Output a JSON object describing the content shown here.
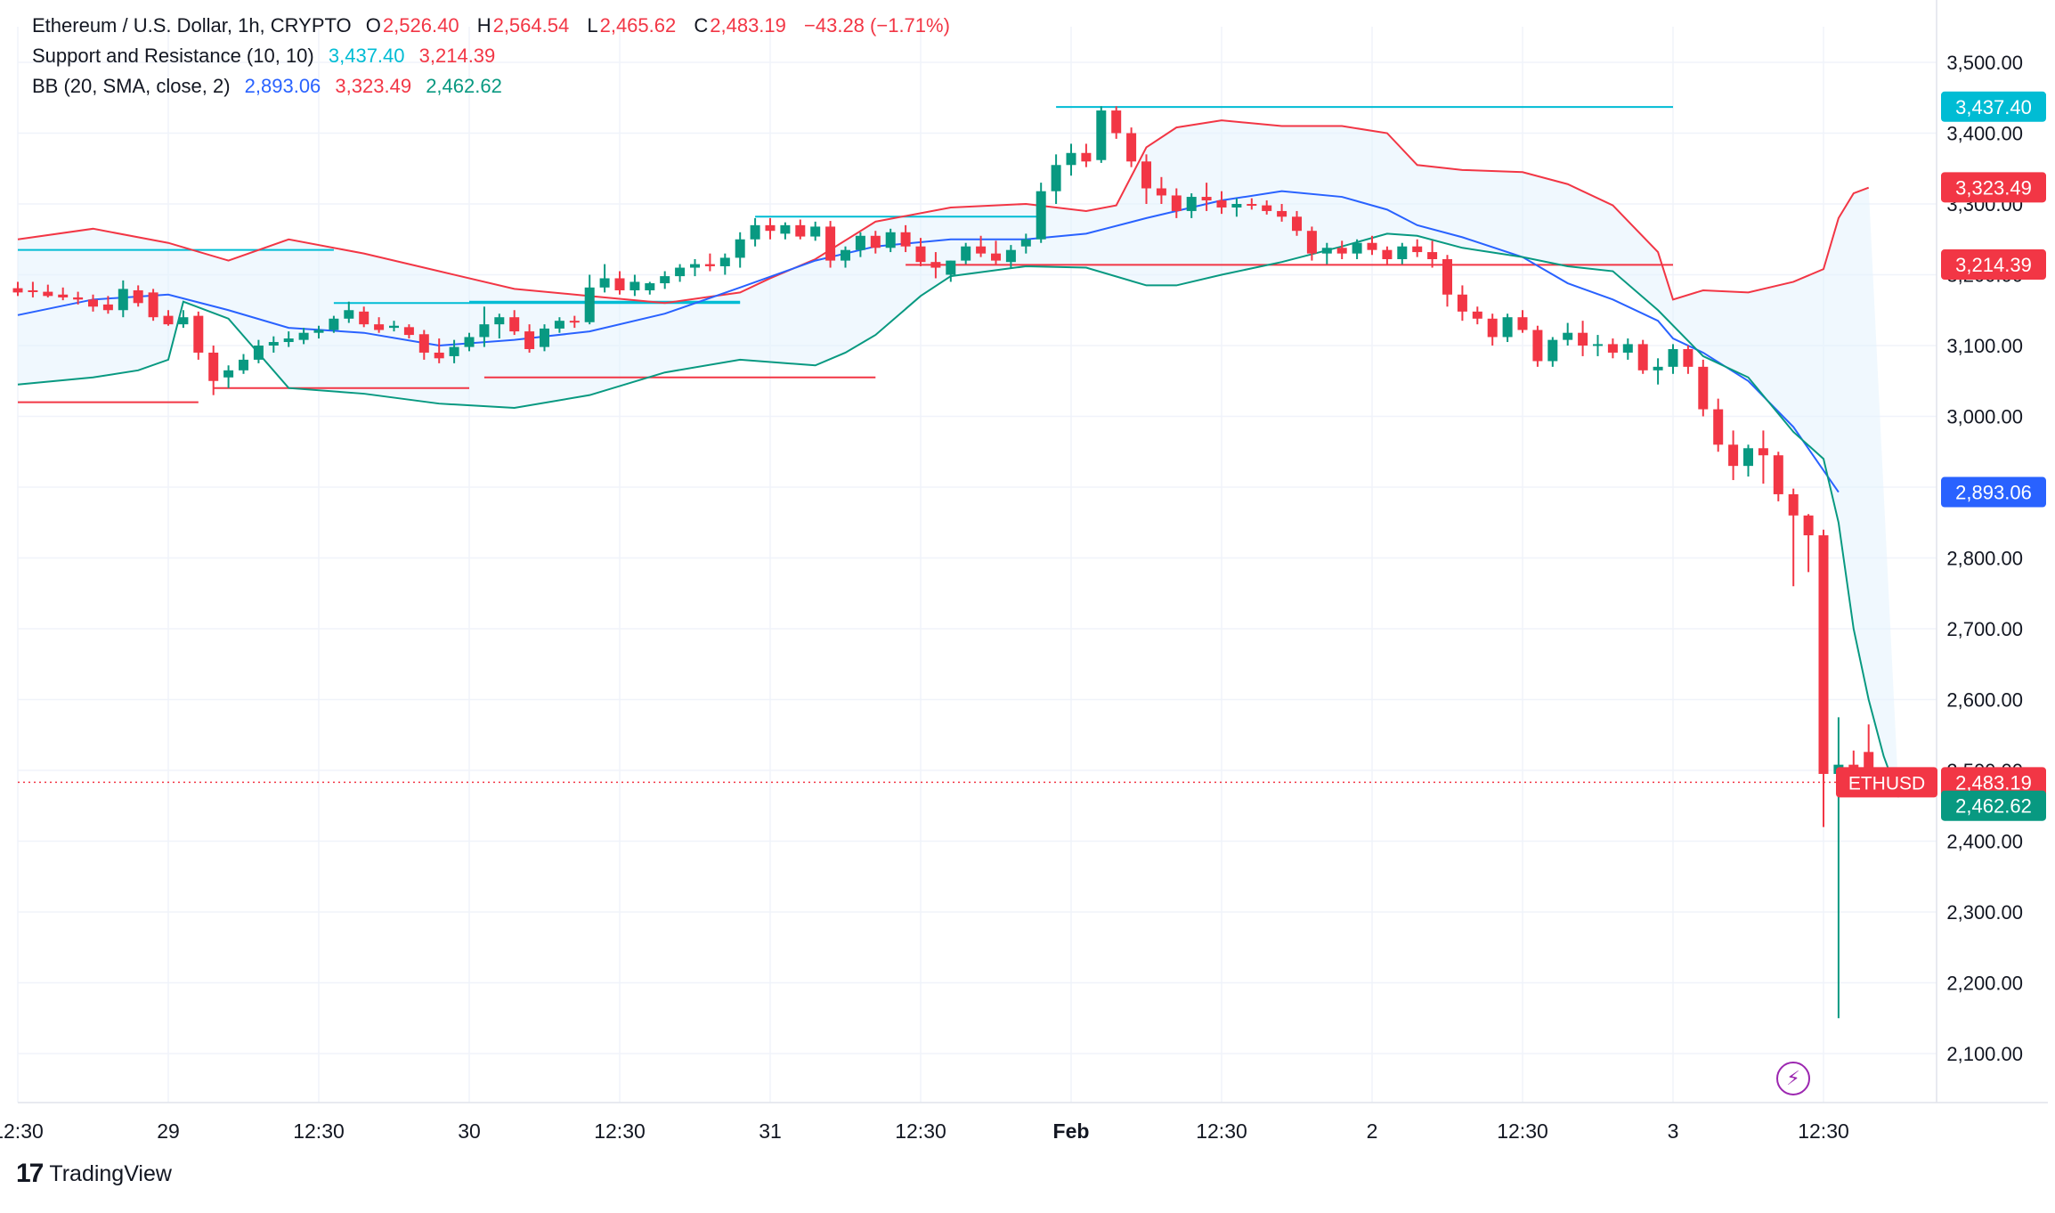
{
  "legend": {
    "symbol": "Ethereum / U.S. Dollar, 1h, CRYPTO",
    "o_label": "O",
    "o": "2,526.40",
    "h_label": "H",
    "h": "2,564.54",
    "l_label": "L",
    "l": "2,465.62",
    "c_label": "C",
    "c": "2,483.19",
    "change": "−43.28 (−1.71%)",
    "sr_name": "Support and Resistance (10, 10)",
    "sr_res": "3,437.40",
    "sr_sup": "3,214.39",
    "bb_name": "BB (20, SMA, close, 2)",
    "bb_basis": "2,893.06",
    "bb_upper": "3,323.49",
    "bb_lower": "2,462.62"
  },
  "branding": {
    "name": "TradingView"
  },
  "colors": {
    "up": "#089981",
    "down": "#f23645",
    "basis": "#2962ff",
    "resistance": "#00bcd4",
    "support": "#f23645",
    "band_fill": "#e3f2fd",
    "bolt": "#9c27b0"
  },
  "chart_data": {
    "type": "candlestick",
    "title": "Ethereum / U.S. Dollar, 1h, CRYPTO",
    "ylim": [
      2050,
      3560
    ],
    "y_ticks": [
      {
        "v": 2100,
        "label": "2,100.00"
      },
      {
        "v": 2200,
        "label": "2,200.00"
      },
      {
        "v": 2300,
        "label": "2,300.00"
      },
      {
        "v": 2400,
        "label": "2,400.00"
      },
      {
        "v": 2500,
        "label": "2,500.00"
      },
      {
        "v": 2600,
        "label": "2,600.00"
      },
      {
        "v": 2700,
        "label": "2,700.00"
      },
      {
        "v": 2800,
        "label": "2,800.00"
      },
      {
        "v": 2900,
        "label": "2,900.00"
      },
      {
        "v": 3000,
        "label": "3,000.00"
      },
      {
        "v": 3100,
        "label": "3,100.00"
      },
      {
        "v": 3200,
        "label": "3,200.00"
      },
      {
        "v": 3300,
        "label": "3,300.00"
      },
      {
        "v": 3400,
        "label": "3,400.00"
      },
      {
        "v": 3500,
        "label": "3,500.00"
      }
    ],
    "x_ticks": [
      {
        "i": 0,
        "label": "12:30"
      },
      {
        "i": 10,
        "label": "29"
      },
      {
        "i": 20,
        "label": "12:30"
      },
      {
        "i": 30,
        "label": "30"
      },
      {
        "i": 40,
        "label": "12:30"
      },
      {
        "i": 50,
        "label": "31"
      },
      {
        "i": 60,
        "label": "12:30"
      },
      {
        "i": 70,
        "label": "Feb",
        "bold": true
      },
      {
        "i": 80,
        "label": "12:30"
      },
      {
        "i": 90,
        "label": "2"
      },
      {
        "i": 100,
        "label": "12:30"
      },
      {
        "i": 110,
        "label": "3"
      },
      {
        "i": 120,
        "label": "12:30"
      }
    ],
    "candles_ohlc": [
      [
        3181,
        3190,
        3170,
        3175
      ],
      [
        3178,
        3190,
        3168,
        3176
      ],
      [
        3176,
        3186,
        3168,
        3170
      ],
      [
        3172,
        3182,
        3164,
        3168
      ],
      [
        3168,
        3176,
        3158,
        3165
      ],
      [
        3165,
        3172,
        3148,
        3155
      ],
      [
        3158,
        3170,
        3145,
        3150
      ],
      [
        3150,
        3192,
        3140,
        3180
      ],
      [
        3178,
        3185,
        3155,
        3160
      ],
      [
        3175,
        3180,
        3135,
        3140
      ],
      [
        3142,
        3150,
        3128,
        3130
      ],
      [
        3130,
        3150,
        3125,
        3140
      ],
      [
        3142,
        3148,
        3080,
        3090
      ],
      [
        3090,
        3100,
        3030,
        3050
      ],
      [
        3055,
        3072,
        3040,
        3065
      ],
      [
        3065,
        3088,
        3060,
        3080
      ],
      [
        3080,
        3108,
        3075,
        3100
      ],
      [
        3100,
        3113,
        3090,
        3105
      ],
      [
        3105,
        3120,
        3098,
        3110
      ],
      [
        3108,
        3125,
        3102,
        3118
      ],
      [
        3118,
        3128,
        3110,
        3122
      ],
      [
        3122,
        3142,
        3118,
        3138
      ],
      [
        3138,
        3162,
        3132,
        3150
      ],
      [
        3148,
        3155,
        3126,
        3130
      ],
      [
        3130,
        3140,
        3118,
        3122
      ],
      [
        3125,
        3135,
        3120,
        3128
      ],
      [
        3126,
        3130,
        3110,
        3115
      ],
      [
        3116,
        3122,
        3080,
        3090
      ],
      [
        3090,
        3110,
        3075,
        3082
      ],
      [
        3085,
        3108,
        3075,
        3098
      ],
      [
        3098,
        3118,
        3092,
        3112
      ],
      [
        3112,
        3155,
        3098,
        3130
      ],
      [
        3130,
        3145,
        3110,
        3140
      ],
      [
        3140,
        3150,
        3115,
        3120
      ],
      [
        3120,
        3130,
        3090,
        3095
      ],
      [
        3098,
        3130,
        3092,
        3124
      ],
      [
        3124,
        3140,
        3118,
        3135
      ],
      [
        3135,
        3142,
        3125,
        3133
      ],
      [
        3133,
        3200,
        3130,
        3182
      ],
      [
        3182,
        3215,
        3175,
        3195
      ],
      [
        3195,
        3205,
        3172,
        3178
      ],
      [
        3178,
        3200,
        3170,
        3190
      ],
      [
        3178,
        3190,
        3172,
        3188
      ],
      [
        3188,
        3205,
        3180,
        3198
      ],
      [
        3198,
        3215,
        3190,
        3210
      ],
      [
        3210,
        3222,
        3198,
        3215
      ],
      [
        3215,
        3230,
        3205,
        3212
      ],
      [
        3212,
        3230,
        3200,
        3224
      ],
      [
        3224,
        3260,
        3210,
        3250
      ],
      [
        3250,
        3280,
        3240,
        3270
      ],
      [
        3270,
        3280,
        3250,
        3262
      ],
      [
        3258,
        3274,
        3250,
        3270
      ],
      [
        3270,
        3278,
        3250,
        3254
      ],
      [
        3254,
        3275,
        3248,
        3268
      ],
      [
        3268,
        3276,
        3210,
        3220
      ],
      [
        3220,
        3240,
        3210,
        3235
      ],
      [
        3235,
        3260,
        3225,
        3255
      ],
      [
        3255,
        3262,
        3230,
        3238
      ],
      [
        3238,
        3265,
        3232,
        3260
      ],
      [
        3260,
        3270,
        3232,
        3240
      ],
      [
        3240,
        3252,
        3212,
        3218
      ],
      [
        3218,
        3232,
        3195,
        3210
      ],
      [
        3200,
        3220,
        3190,
        3220
      ],
      [
        3220,
        3245,
        3215,
        3240
      ],
      [
        3240,
        3255,
        3225,
        3230
      ],
      [
        3230,
        3248,
        3215,
        3220
      ],
      [
        3218,
        3242,
        3210,
        3235
      ],
      [
        3240,
        3258,
        3230,
        3250
      ],
      [
        3250,
        3330,
        3245,
        3318
      ],
      [
        3318,
        3370,
        3300,
        3355
      ],
      [
        3355,
        3385,
        3340,
        3372
      ],
      [
        3372,
        3385,
        3352,
        3360
      ],
      [
        3362,
        3438,
        3358,
        3432
      ],
      [
        3432,
        3438,
        3392,
        3400
      ],
      [
        3400,
        3408,
        3352,
        3360
      ],
      [
        3360,
        3370,
        3300,
        3322
      ],
      [
        3322,
        3338,
        3300,
        3312
      ],
      [
        3312,
        3322,
        3280,
        3290
      ],
      [
        3290,
        3315,
        3280,
        3310
      ],
      [
        3310,
        3330,
        3290,
        3305
      ],
      [
        3305,
        3318,
        3286,
        3295
      ],
      [
        3295,
        3308,
        3282,
        3300
      ],
      [
        3300,
        3308,
        3292,
        3298
      ],
      [
        3298,
        3305,
        3285,
        3290
      ],
      [
        3290,
        3300,
        3275,
        3282
      ],
      [
        3282,
        3290,
        3255,
        3262
      ],
      [
        3262,
        3268,
        3220,
        3230
      ],
      [
        3230,
        3245,
        3215,
        3238
      ],
      [
        3238,
        3248,
        3222,
        3230
      ],
      [
        3230,
        3250,
        3222,
        3245
      ],
      [
        3245,
        3255,
        3228,
        3235
      ],
      [
        3235,
        3240,
        3215,
        3222
      ],
      [
        3222,
        3245,
        3215,
        3240
      ],
      [
        3240,
        3250,
        3225,
        3232
      ],
      [
        3232,
        3248,
        3210,
        3222
      ],
      [
        3222,
        3228,
        3155,
        3172
      ],
      [
        3172,
        3185,
        3135,
        3148
      ],
      [
        3148,
        3155,
        3130,
        3138
      ],
      [
        3138,
        3145,
        3100,
        3112
      ],
      [
        3112,
        3145,
        3105,
        3140
      ],
      [
        3140,
        3150,
        3118,
        3122
      ],
      [
        3122,
        3128,
        3070,
        3078
      ],
      [
        3078,
        3112,
        3070,
        3108
      ],
      [
        3108,
        3132,
        3100,
        3118
      ],
      [
        3118,
        3135,
        3085,
        3100
      ],
      [
        3100,
        3115,
        3085,
        3102
      ],
      [
        3102,
        3110,
        3082,
        3090
      ],
      [
        3090,
        3110,
        3080,
        3102
      ],
      [
        3102,
        3108,
        3060,
        3065
      ],
      [
        3065,
        3082,
        3045,
        3070
      ],
      [
        3070,
        3102,
        3060,
        3095
      ],
      [
        3095,
        3100,
        3060,
        3070
      ],
      [
        3070,
        3080,
        3000,
        3010
      ],
      [
        3010,
        3025,
        2950,
        2960
      ],
      [
        2960,
        2980,
        2910,
        2930
      ],
      [
        2930,
        2960,
        2915,
        2955
      ],
      [
        2955,
        2980,
        2905,
        2945
      ],
      [
        2945,
        2950,
        2880,
        2890
      ],
      [
        2890,
        2898,
        2760,
        2860
      ],
      [
        2860,
        2862,
        2780,
        2832
      ],
      [
        2832,
        2840,
        2420,
        2495
      ],
      [
        2495,
        2575,
        2150,
        2508
      ],
      [
        2508,
        2528,
        2465,
        2482
      ],
      [
        2526,
        2565,
        2466,
        2483
      ]
    ],
    "bb_upper": [
      [
        0,
        3250
      ],
      [
        5,
        3265
      ],
      [
        10,
        3245
      ],
      [
        14,
        3220
      ],
      [
        18,
        3250
      ],
      [
        23,
        3230
      ],
      [
        28,
        3205
      ],
      [
        33,
        3180
      ],
      [
        38,
        3170
      ],
      [
        43,
        3160
      ],
      [
        48,
        3175
      ],
      [
        50,
        3195
      ],
      [
        53,
        3222
      ],
      [
        57,
        3275
      ],
      [
        62,
        3295
      ],
      [
        67,
        3300
      ],
      [
        71,
        3290
      ],
      [
        73,
        3298
      ],
      [
        75,
        3380
      ],
      [
        77,
        3408
      ],
      [
        80,
        3418
      ],
      [
        84,
        3410
      ],
      [
        88,
        3410
      ],
      [
        91,
        3400
      ],
      [
        93,
        3355
      ],
      [
        96,
        3348
      ],
      [
        100,
        3345
      ],
      [
        103,
        3328
      ],
      [
        106,
        3298
      ],
      [
        109,
        3232
      ],
      [
        110,
        3165
      ],
      [
        112,
        3178
      ],
      [
        115,
        3175
      ],
      [
        118,
        3190
      ],
      [
        120,
        3208
      ],
      [
        121,
        3280
      ],
      [
        122,
        3315
      ],
      [
        123,
        3323
      ]
    ],
    "bb_basis": [
      [
        0,
        3143
      ],
      [
        5,
        3165
      ],
      [
        10,
        3172
      ],
      [
        14,
        3150
      ],
      [
        18,
        3125
      ],
      [
        23,
        3118
      ],
      [
        28,
        3100
      ],
      [
        33,
        3108
      ],
      [
        38,
        3120
      ],
      [
        43,
        3145
      ],
      [
        48,
        3182
      ],
      [
        53,
        3220
      ],
      [
        57,
        3240
      ],
      [
        62,
        3250
      ],
      [
        67,
        3250
      ],
      [
        71,
        3258
      ],
      [
        75,
        3280
      ],
      [
        80,
        3305
      ],
      [
        84,
        3318
      ],
      [
        88,
        3310
      ],
      [
        91,
        3292
      ],
      [
        93,
        3270
      ],
      [
        96,
        3253
      ],
      [
        100,
        3225
      ],
      [
        103,
        3188
      ],
      [
        106,
        3165
      ],
      [
        109,
        3135
      ],
      [
        110,
        3110
      ],
      [
        112,
        3090
      ],
      [
        115,
        3050
      ],
      [
        118,
        2985
      ],
      [
        121,
        2893
      ]
    ],
    "bb_lower": [
      [
        0,
        3045
      ],
      [
        5,
        3055
      ],
      [
        8,
        3065
      ],
      [
        10,
        3080
      ],
      [
        11,
        3162
      ],
      [
        14,
        3138
      ],
      [
        18,
        3040
      ],
      [
        23,
        3032
      ],
      [
        28,
        3018
      ],
      [
        33,
        3012
      ],
      [
        38,
        3030
      ],
      [
        43,
        3062
      ],
      [
        48,
        3080
      ],
      [
        53,
        3072
      ],
      [
        55,
        3090
      ],
      [
        57,
        3115
      ],
      [
        60,
        3170
      ],
      [
        62,
        3198
      ],
      [
        67,
        3212
      ],
      [
        71,
        3210
      ],
      [
        75,
        3185
      ],
      [
        77,
        3185
      ],
      [
        80,
        3200
      ],
      [
        84,
        3218
      ],
      [
        88,
        3240
      ],
      [
        91,
        3258
      ],
      [
        93,
        3255
      ],
      [
        96,
        3238
      ],
      [
        100,
        3225
      ],
      [
        103,
        3212
      ],
      [
        106,
        3205
      ],
      [
        109,
        3150
      ],
      [
        112,
        3085
      ],
      [
        115,
        3055
      ],
      [
        118,
        2978
      ],
      [
        120,
        2940
      ],
      [
        121,
        2850
      ],
      [
        122,
        2700
      ],
      [
        123,
        2600
      ],
      [
        124,
        2520
      ],
      [
        125,
        2462
      ]
    ],
    "sr_lines": [
      {
        "kind": "resistance",
        "price": 3235,
        "i0": 0,
        "i1": 21
      },
      {
        "kind": "support",
        "price": 3020,
        "i0": 0,
        "i1": 12
      },
      {
        "kind": "resistance",
        "price": 3160,
        "i0": 21,
        "i1": 48
      },
      {
        "kind": "support",
        "price": 3040,
        "i0": 13,
        "i1": 30
      },
      {
        "kind": "resistance",
        "price": 3162,
        "i0": 30,
        "i1": 48
      },
      {
        "kind": "support",
        "price": 3055,
        "i0": 31,
        "i1": 57
      },
      {
        "kind": "resistance",
        "price": 3282,
        "i0": 49,
        "i1": 68
      },
      {
        "kind": "support",
        "price": 3214,
        "i0": 59,
        "i1": 110
      },
      {
        "kind": "resistance",
        "price": 3437,
        "i0": 69,
        "i1": 110
      }
    ],
    "price_line": 2483.19,
    "axis_badges": [
      {
        "v": 3437.4,
        "label": "3,437.40",
        "color": "#00bcd4"
      },
      {
        "v": 3323.49,
        "label": "3,323.49",
        "color": "#f23645"
      },
      {
        "v": 3214.39,
        "label": "3,214.39",
        "color": "#f23645"
      },
      {
        "v": 2893.06,
        "label": "2,893.06",
        "color": "#2962ff"
      },
      {
        "v": 2483.19,
        "label": "2,483.19",
        "color": "#f23645",
        "tag": "ETHUSD"
      },
      {
        "v": 2462.62,
        "label": "2,462.62",
        "color": "#089981"
      }
    ]
  }
}
